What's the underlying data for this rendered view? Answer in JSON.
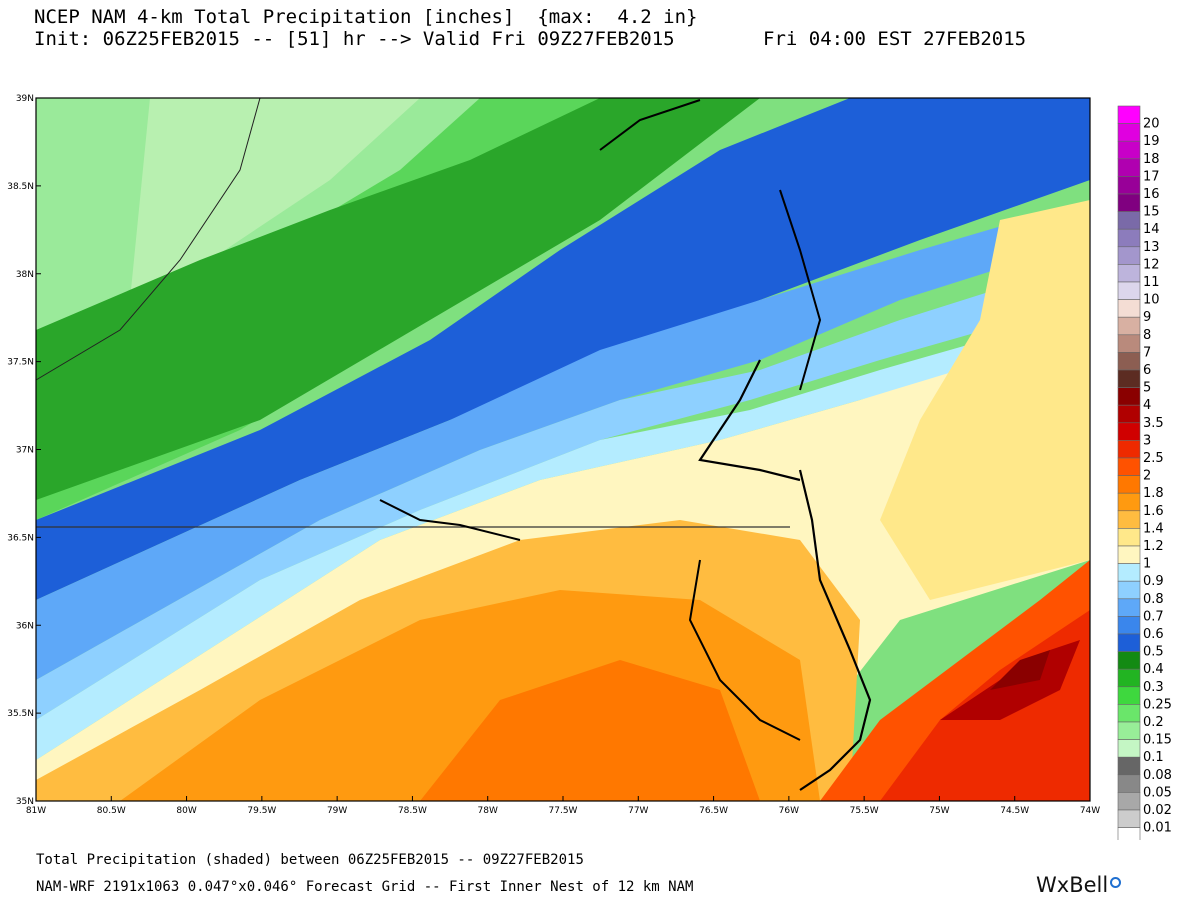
{
  "header": {
    "line1": "NCEP NAM 4-km Total Precipitation [inches]  {max:  4.2 in}",
    "line2": "Init: 06Z25FEB2015 -- [51] hr --> Valid Fri 09Z27FEB2015",
    "valid_local": "Fri 04:00 EST 27FEB2015"
  },
  "footer": {
    "line1": "Total Precipitation (shaded) between 06Z25FEB2015 -- 09Z27FEB2015",
    "line2": "NAM-WRF 2191x1063 0.047°x0.046° Forecast Grid -- First Inner Nest of 12 km NAM",
    "brand": "WxBell"
  },
  "map": {
    "lon_labels": [
      "81W",
      "80.5W",
      "80W",
      "79.5W",
      "79W",
      "78.5W",
      "78W",
      "77.5W",
      "77W",
      "76.5W",
      "76W",
      "75.5W",
      "75W",
      "74.5W",
      "74W"
    ],
    "lat_labels": [
      "39N",
      "38.5N",
      "38N",
      "37.5N",
      "37N",
      "36.5N",
      "36N",
      "35.5N",
      "35N"
    ],
    "lon_range": [
      -81,
      -74
    ],
    "lat_range": [
      35,
      39
    ]
  },
  "legend": {
    "items": [
      {
        "label": "20",
        "color": "#ff00ff"
      },
      {
        "label": "19",
        "color": "#e000e0"
      },
      {
        "label": "18",
        "color": "#c800c8"
      },
      {
        "label": "17",
        "color": "#b000b0"
      },
      {
        "label": "16",
        "color": "#980098"
      },
      {
        "label": "15",
        "color": "#800080"
      },
      {
        "label": "14",
        "color": "#7a6aa8"
      },
      {
        "label": "13",
        "color": "#8c7cbc"
      },
      {
        "label": "12",
        "color": "#a396cc"
      },
      {
        "label": "11",
        "color": "#bdb4dc"
      },
      {
        "label": "10",
        "color": "#dcd6ec"
      },
      {
        "label": "9",
        "color": "#f4ddd4"
      },
      {
        "label": "8",
        "color": "#d8b0a2"
      },
      {
        "label": "7",
        "color": "#b98a7c"
      },
      {
        "label": "6",
        "color": "#8c5e52"
      },
      {
        "label": "5",
        "color": "#5c2c22"
      },
      {
        "label": "4",
        "color": "#8a0000"
      },
      {
        "label": "3.5",
        "color": "#b00000"
      },
      {
        "label": "3",
        "color": "#d00000"
      },
      {
        "label": "2.5",
        "color": "#ee2a00"
      },
      {
        "label": "2",
        "color": "#ff5200"
      },
      {
        "label": "1.8",
        "color": "#ff7800"
      },
      {
        "label": "1.6",
        "color": "#ff9a10"
      },
      {
        "label": "1.4",
        "color": "#ffbc40"
      },
      {
        "label": "1.2",
        "color": "#ffe88a"
      },
      {
        "label": "1",
        "color": "#fff6c0"
      },
      {
        "label": "0.9",
        "color": "#b4ecff"
      },
      {
        "label": "0.8",
        "color": "#8ed0ff"
      },
      {
        "label": "0.7",
        "color": "#5ea8f8"
      },
      {
        "label": "0.6",
        "color": "#3a86ec"
      },
      {
        "label": "0.5",
        "color": "#1d5fd8"
      },
      {
        "label": "0.4",
        "color": "#138a13"
      },
      {
        "label": "0.3",
        "color": "#22b422"
      },
      {
        "label": "0.25",
        "color": "#3ed83e"
      },
      {
        "label": "0.2",
        "color": "#6ae66a"
      },
      {
        "label": "0.15",
        "color": "#98ee98"
      },
      {
        "label": "0.1",
        "color": "#c4f6c4"
      },
      {
        "label": "0.08",
        "color": "#666666"
      },
      {
        "label": "0.05",
        "color": "#888888"
      },
      {
        "label": "0.02",
        "color": "#a8a8a8"
      },
      {
        "label": "0.01",
        "color": "#cccccc"
      },
      {
        "label": "",
        "color": "#ffffff"
      }
    ]
  }
}
